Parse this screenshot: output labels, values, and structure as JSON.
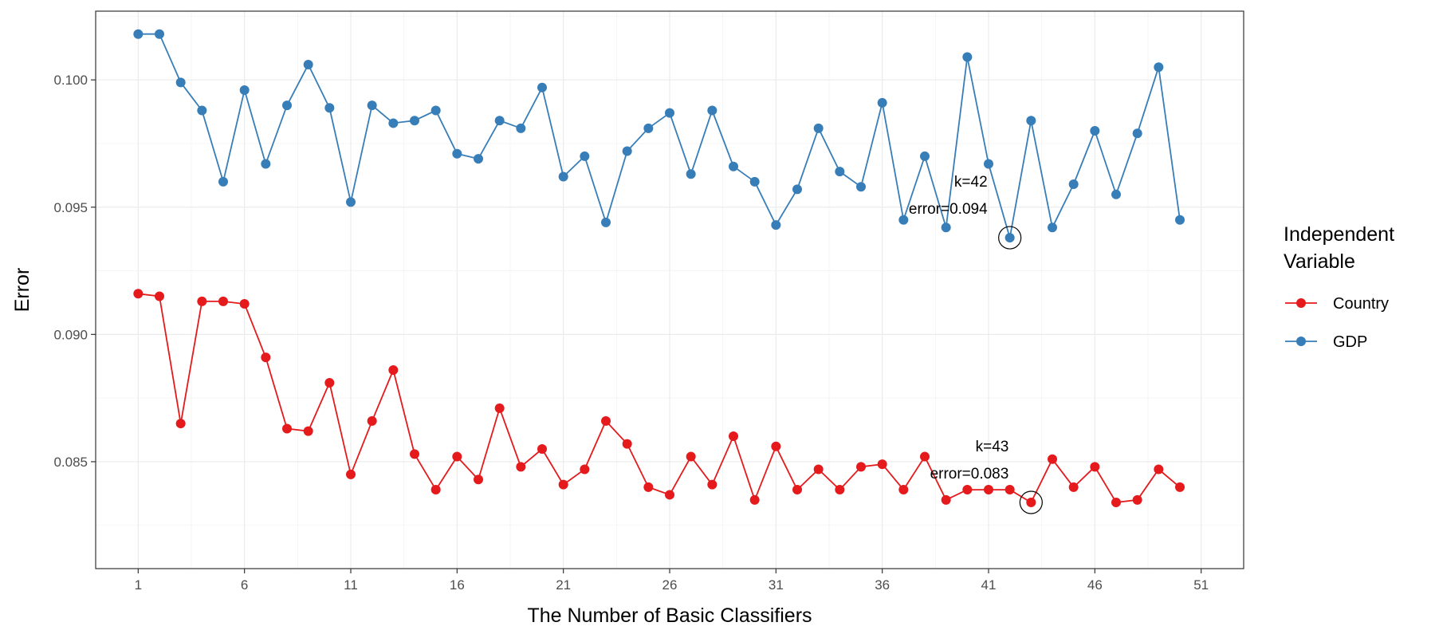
{
  "chart_data": {
    "type": "line",
    "xlabel": "The Number of Basic Classifiers",
    "ylabel": "Error",
    "xlim": [
      -1,
      53
    ],
    "ylim": [
      0.0808,
      0.1027
    ],
    "x_ticks": [
      1,
      6,
      11,
      16,
      21,
      26,
      31,
      36,
      41,
      46,
      51
    ],
    "y_ticks": [
      0.085,
      0.09,
      0.095,
      0.1
    ],
    "y_tick_labels": [
      "0.085",
      "0.090",
      "0.095",
      "0.100"
    ],
    "grid": true,
    "legend": {
      "title_lines": [
        "Independent",
        "Variable"
      ],
      "placement": "right"
    },
    "series": [
      {
        "name": "Country",
        "color": "#e41a1c",
        "x": [
          1,
          2,
          3,
          4,
          5,
          6,
          7,
          8,
          9,
          10,
          11,
          12,
          13,
          14,
          15,
          16,
          17,
          18,
          19,
          20,
          21,
          22,
          23,
          24,
          25,
          26,
          27,
          28,
          29,
          30,
          31,
          32,
          33,
          34,
          35,
          36,
          37,
          38,
          39,
          40,
          41,
          42,
          43,
          44,
          45,
          46,
          47,
          48,
          49,
          50
        ],
        "y": [
          0.0916,
          0.0915,
          0.0865,
          0.0913,
          0.0913,
          0.0912,
          0.0891,
          0.0863,
          0.0862,
          0.0881,
          0.0845,
          0.0866,
          0.0886,
          0.0853,
          0.0839,
          0.0852,
          0.0843,
          0.0871,
          0.0848,
          0.0855,
          0.0841,
          0.0847,
          0.0866,
          0.0857,
          0.084,
          0.0837,
          0.0852,
          0.0841,
          0.086,
          0.0835,
          0.0856,
          0.0839,
          0.0847,
          0.0839,
          0.0848,
          0.0849,
          0.0839,
          0.0852,
          0.0835,
          0.0839,
          0.0839,
          0.0839,
          0.0834,
          0.0851,
          0.084,
          0.0848,
          0.0834,
          0.0835,
          0.0847,
          0.084
        ]
      },
      {
        "name": "GDP",
        "color": "#377eb8",
        "x": [
          1,
          2,
          3,
          4,
          5,
          6,
          7,
          8,
          9,
          10,
          11,
          12,
          13,
          14,
          15,
          16,
          17,
          18,
          19,
          20,
          21,
          22,
          23,
          24,
          25,
          26,
          27,
          28,
          29,
          30,
          31,
          32,
          33,
          34,
          35,
          36,
          37,
          38,
          39,
          40,
          41,
          42,
          43,
          44,
          45,
          46,
          47,
          48,
          49,
          50
        ],
        "y": [
          0.1018,
          0.1018,
          0.0999,
          0.0988,
          0.096,
          0.0996,
          0.0967,
          0.099,
          0.1006,
          0.0989,
          0.0952,
          0.099,
          0.0983,
          0.0984,
          0.0988,
          0.0971,
          0.0969,
          0.0984,
          0.0981,
          0.0997,
          0.0962,
          0.097,
          0.0944,
          0.0972,
          0.0981,
          0.0987,
          0.0963,
          0.0988,
          0.0966,
          0.096,
          0.0943,
          0.0957,
          0.0981,
          0.0964,
          0.0958,
          0.0991,
          0.0945,
          0.097,
          0.0942,
          0.1009,
          0.0967,
          0.0938,
          0.0984,
          0.0942,
          0.0959,
          0.098,
          0.0955,
          0.0979,
          0.1005,
          0.0945
        ]
      }
    ],
    "annotations": [
      {
        "series": "GDP",
        "x": 42,
        "y": 0.0938,
        "line1": "k=42",
        "line2": "error=0.094"
      },
      {
        "series": "Country",
        "x": 43,
        "y": 0.0834,
        "line1": "k=43",
        "line2": "error=0.083"
      }
    ]
  }
}
